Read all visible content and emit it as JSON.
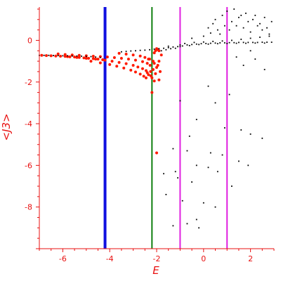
{
  "chart_data": {
    "type": "scatter",
    "title": "",
    "xlabel": "E",
    "ylabel": "<J3>",
    "xlim": [
      -7,
      3
    ],
    "ylim": [
      -10,
      1.6
    ],
    "x_ticks": [
      -6,
      -4,
      -2,
      0,
      2
    ],
    "x_tick_labels": [
      "-6",
      "-4",
      "-2",
      "0",
      "2"
    ],
    "y_ticks": [
      0,
      -2,
      -4,
      -6,
      -8
    ],
    "y_tick_labels": [
      "0",
      "-2",
      "-4",
      "-6",
      "-8"
    ],
    "grid": false,
    "colors": {
      "axis": "#e81010",
      "series_red": "#ff1a00",
      "series_black": "#000000",
      "line_blue": "#1010e0",
      "line_green": "#108010",
      "line_magenta": "#e020e0"
    },
    "vertical_lines": [
      {
        "x": -4.2,
        "color": "#1010e0",
        "width": 4
      },
      {
        "x": -2.2,
        "color": "#108010",
        "width": 2
      },
      {
        "x": -1.0,
        "color": "#e020e0",
        "width": 2
      },
      {
        "x": 1.0,
        "color": "#e020e0",
        "width": 2
      }
    ],
    "series": [
      {
        "color": "#ff1a00",
        "points": [
          [
            -6.9,
            -0.72
          ],
          [
            -6.7,
            -0.73
          ],
          [
            -6.5,
            -0.74
          ],
          [
            -6.3,
            -0.75
          ],
          [
            -6.1,
            -0.76
          ],
          [
            -5.9,
            -0.77
          ],
          [
            -5.7,
            -0.79
          ],
          [
            -5.5,
            -0.8
          ],
          [
            -5.3,
            -0.82
          ],
          [
            -5.1,
            -0.84
          ],
          [
            -4.9,
            -0.86
          ],
          [
            -4.7,
            -0.88
          ],
          [
            -4.5,
            -0.9
          ],
          [
            -4.3,
            -0.93
          ],
          [
            -6.2,
            -0.65
          ],
          [
            -5.9,
            -0.68
          ],
          [
            -5.6,
            -0.7
          ],
          [
            -5.3,
            -0.72
          ],
          [
            -5.0,
            -0.74
          ],
          [
            -4.7,
            -0.76
          ],
          [
            -4.4,
            -0.78
          ],
          [
            -4.1,
            -0.8
          ],
          [
            -3.8,
            -0.83
          ],
          [
            -3.5,
            -0.86
          ],
          [
            -3.2,
            -0.9
          ],
          [
            -2.9,
            -0.95
          ],
          [
            -2.6,
            -1.02
          ],
          [
            -2.4,
            -1.1
          ],
          [
            -5.8,
            -0.78
          ],
          [
            -5.4,
            -0.82
          ],
          [
            -5.0,
            -0.86
          ],
          [
            -4.6,
            -0.9
          ],
          [
            -4.2,
            -0.95
          ],
          [
            -3.9,
            -1.0
          ],
          [
            -3.6,
            -1.06
          ],
          [
            -3.3,
            -1.12
          ],
          [
            -3.0,
            -1.2
          ],
          [
            -2.8,
            -1.28
          ],
          [
            -2.6,
            -1.36
          ],
          [
            -2.45,
            -1.45
          ],
          [
            -4.8,
            -1.0
          ],
          [
            -4.4,
            -1.08
          ],
          [
            -4.0,
            -1.16
          ],
          [
            -3.7,
            -1.24
          ],
          [
            -3.4,
            -1.33
          ],
          [
            -3.1,
            -1.43
          ],
          [
            -2.9,
            -1.52
          ],
          [
            -2.7,
            -1.62
          ],
          [
            -2.55,
            -1.72
          ],
          [
            -2.45,
            -1.8
          ],
          [
            -3.6,
            -0.62
          ],
          [
            -3.3,
            -0.66
          ],
          [
            -3.0,
            -0.7
          ],
          [
            -2.7,
            -0.75
          ],
          [
            -2.5,
            -0.82
          ],
          [
            -2.35,
            -0.9
          ],
          [
            -2.3,
            -0.9
          ],
          [
            -2.28,
            -1.2
          ],
          [
            -2.26,
            -1.5
          ],
          [
            -2.25,
            -1.7
          ],
          [
            -2.2,
            -2.5
          ],
          [
            -2.15,
            -1.0
          ],
          [
            -2.1,
            -0.6
          ],
          [
            -2.05,
            -0.5
          ],
          [
            -2.0,
            -0.4
          ],
          [
            -1.95,
            -0.45
          ],
          [
            -1.9,
            -0.5
          ],
          [
            -2.1,
            -1.1
          ],
          [
            -2.0,
            -1.3
          ],
          [
            -1.9,
            -1.0
          ],
          [
            -1.8,
            -0.7
          ],
          [
            -2.15,
            -1.4
          ],
          [
            -2.05,
            -1.6
          ],
          [
            -1.95,
            -1.2
          ],
          [
            -1.85,
            -1.5
          ],
          [
            -2.4,
            -1.55
          ],
          [
            -2.35,
            -1.65
          ],
          [
            -2.2,
            -1.8
          ],
          [
            -2.1,
            -1.95
          ],
          [
            -1.9,
            -1.9
          ],
          [
            -2.0,
            -5.4
          ]
        ]
      },
      {
        "color": "#000000",
        "points": [
          [
            -7.0,
            -0.72
          ],
          [
            -6.8,
            -0.72
          ],
          [
            -6.6,
            -0.72
          ],
          [
            -6.4,
            -0.73
          ],
          [
            -6.2,
            -0.73
          ],
          [
            -6.0,
            -0.74
          ],
          [
            -5.8,
            -0.74
          ],
          [
            -5.6,
            -0.75
          ],
          [
            -5.4,
            -0.75
          ],
          [
            -5.2,
            -0.76
          ],
          [
            -5.0,
            -0.77
          ],
          [
            -4.8,
            -0.78
          ],
          [
            -4.6,
            -0.8
          ],
          [
            -4.4,
            -0.82
          ],
          [
            -3.5,
            -0.55
          ],
          [
            -3.3,
            -0.53
          ],
          [
            -3.1,
            -0.51
          ],
          [
            -2.9,
            -0.5
          ],
          [
            -2.7,
            -0.48
          ],
          [
            -2.5,
            -0.47
          ],
          [
            -2.3,
            -0.45
          ],
          [
            -2.1,
            -0.42
          ],
          [
            -1.9,
            -0.4
          ],
          [
            -1.7,
            -0.38
          ],
          [
            -1.5,
            -0.35
          ],
          [
            -1.3,
            -0.32
          ],
          [
            -1.1,
            -0.3
          ],
          [
            -0.9,
            -0.27
          ],
          [
            -0.7,
            -0.22
          ],
          [
            -0.5,
            -0.2
          ],
          [
            -0.3,
            -0.18
          ],
          [
            -0.1,
            -0.16
          ],
          [
            0.1,
            -0.15
          ],
          [
            0.3,
            -0.14
          ],
          [
            0.5,
            -0.13
          ],
          [
            0.7,
            -0.12
          ],
          [
            0.9,
            -0.12
          ],
          [
            1.1,
            -0.11
          ],
          [
            1.3,
            -0.11
          ],
          [
            1.5,
            -0.1
          ],
          [
            1.7,
            -0.1
          ],
          [
            1.9,
            -0.1
          ],
          [
            2.1,
            -0.1
          ],
          [
            2.3,
            -0.1
          ],
          [
            2.5,
            -0.09
          ],
          [
            2.7,
            -0.09
          ],
          [
            2.9,
            -0.09
          ],
          [
            -1.0,
            -0.3
          ],
          [
            -0.6,
            -0.25
          ],
          [
            -0.2,
            -0.2
          ],
          [
            0.2,
            -0.18
          ],
          [
            0.6,
            -0.16
          ],
          [
            1.0,
            -0.15
          ],
          [
            1.4,
            -0.14
          ],
          [
            1.8,
            -0.14
          ],
          [
            2.2,
            -0.13
          ],
          [
            2.6,
            -0.13
          ],
          [
            -0.8,
            -0.15
          ],
          [
            -0.4,
            -0.1
          ],
          [
            0.0,
            -0.08
          ],
          [
            0.4,
            -0.05
          ],
          [
            0.8,
            -0.03
          ],
          [
            1.2,
            0.0
          ],
          [
            1.6,
            0.05
          ],
          [
            2.0,
            0.1
          ],
          [
            2.4,
            0.15
          ],
          [
            2.8,
            0.2
          ],
          [
            -0.5,
            0.1
          ],
          [
            0.0,
            0.2
          ],
          [
            0.3,
            0.35
          ],
          [
            0.6,
            0.5
          ],
          [
            0.9,
            0.7
          ],
          [
            1.2,
            0.9
          ],
          [
            1.5,
            1.1
          ],
          [
            1.8,
            1.3
          ],
          [
            2.1,
            1.0
          ],
          [
            2.4,
            0.8
          ],
          [
            2.7,
            0.6
          ],
          [
            0.5,
            1.0
          ],
          [
            0.8,
            1.2
          ],
          [
            1.0,
            1.4
          ],
          [
            1.3,
            1.5
          ],
          [
            1.6,
            1.2
          ],
          [
            1.9,
            0.9
          ],
          [
            2.2,
            1.2
          ],
          [
            2.5,
            0.5
          ],
          [
            2.8,
            0.3
          ],
          [
            0.2,
            0.6
          ],
          [
            0.4,
            0.8
          ],
          [
            0.7,
            0.3
          ],
          [
            1.1,
            0.5
          ],
          [
            1.4,
            0.7
          ],
          [
            1.7,
            0.6
          ],
          [
            2.0,
            0.4
          ],
          [
            2.3,
            0.7
          ],
          [
            2.6,
            1.1
          ],
          [
            2.9,
            0.9
          ],
          [
            -1.8,
            -0.5
          ],
          [
            -1.6,
            -0.45
          ],
          [
            -1.4,
            -0.4
          ],
          [
            -1.2,
            -0.38
          ],
          [
            -1.5,
            -0.28
          ],
          [
            -1.0,
            -0.22
          ],
          [
            1.4,
            -0.8
          ],
          [
            2.0,
            -0.5
          ],
          [
            2.6,
            -1.4
          ],
          [
            1.7,
            -1.2
          ],
          [
            2.2,
            -0.9
          ],
          [
            0.2,
            -2.2
          ],
          [
            1.1,
            -2.6
          ],
          [
            0.5,
            -3.0
          ],
          [
            -1.0,
            -2.9
          ],
          [
            -0.3,
            -3.8
          ],
          [
            1.6,
            -4.3
          ],
          [
            2.0,
            -4.5
          ],
          [
            2.5,
            -4.7
          ],
          [
            0.9,
            -4.2
          ],
          [
            -0.6,
            -4.6
          ],
          [
            -1.3,
            -5.2
          ],
          [
            -0.7,
            -5.3
          ],
          [
            0.3,
            -5.4
          ],
          [
            0.8,
            -5.5
          ],
          [
            1.5,
            -5.8
          ],
          [
            1.9,
            -6.0
          ],
          [
            -1.7,
            -6.4
          ],
          [
            -1.2,
            -6.3
          ],
          [
            -0.3,
            -6.0
          ],
          [
            0.2,
            -6.1
          ],
          [
            0.6,
            -6.3
          ],
          [
            -1.1,
            -6.6
          ],
          [
            -0.5,
            -6.8
          ],
          [
            1.2,
            -7.0
          ],
          [
            -1.6,
            -7.4
          ],
          [
            -0.9,
            -7.7
          ],
          [
            0.0,
            -7.8
          ],
          [
            0.5,
            -8.0
          ],
          [
            -1.3,
            -8.9
          ],
          [
            -0.2,
            -9.0
          ],
          [
            -0.7,
            -8.8
          ],
          [
            -0.3,
            -8.6
          ]
        ]
      }
    ]
  }
}
